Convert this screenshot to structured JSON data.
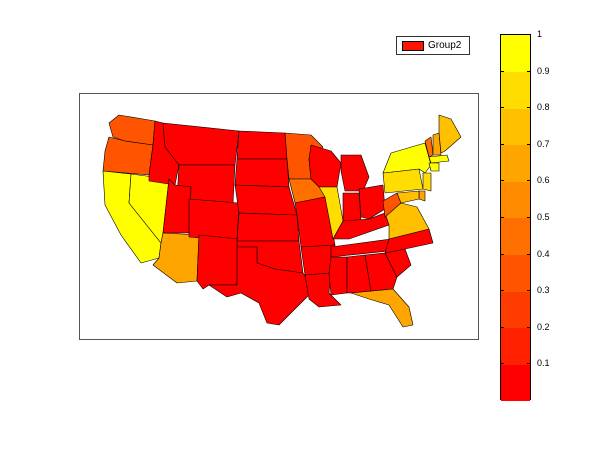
{
  "legend": {
    "label": "Group2",
    "swatch_color": "#ff1400"
  },
  "colorbar": {
    "min": 0,
    "max": 1,
    "tick_labels": [
      "0.1",
      "0.2",
      "0.3",
      "0.4",
      "0.5",
      "0.6",
      "0.7",
      "0.8",
      "0.9",
      "1"
    ],
    "tick_values": [
      0.1,
      0.2,
      0.3,
      0.4,
      0.5,
      0.6,
      0.7,
      0.8,
      0.9,
      1.0
    ],
    "colors": [
      "#ff0000",
      "#ff2000",
      "#ff3c00",
      "#ff5500",
      "#ff7000",
      "#ff8c00",
      "#ffa500",
      "#ffc000",
      "#ffdd00",
      "#ffff00"
    ]
  },
  "map": {
    "states": [
      {
        "name": "WA",
        "value": 0.3
      },
      {
        "name": "OR",
        "value": 0.35
      },
      {
        "name": "CA",
        "value": 1.0
      },
      {
        "name": "NV",
        "value": 0.9
      },
      {
        "name": "ID",
        "value": 0.05
      },
      {
        "name": "MT",
        "value": 0.05
      },
      {
        "name": "WY",
        "value": 0.05
      },
      {
        "name": "UT",
        "value": 0.05
      },
      {
        "name": "AZ",
        "value": 0.65
      },
      {
        "name": "CO",
        "value": 0.05
      },
      {
        "name": "NM",
        "value": 0.05
      },
      {
        "name": "ND",
        "value": 0.05
      },
      {
        "name": "SD",
        "value": 0.05
      },
      {
        "name": "NE",
        "value": 0.05
      },
      {
        "name": "KS",
        "value": 0.05
      },
      {
        "name": "OK",
        "value": 0.05
      },
      {
        "name": "TX",
        "value": 0.05
      },
      {
        "name": "MN",
        "value": 0.35
      },
      {
        "name": "IA",
        "value": 0.4
      },
      {
        "name": "MO",
        "value": 0.05
      },
      {
        "name": "AR",
        "value": 0.05
      },
      {
        "name": "LA",
        "value": 0.05
      },
      {
        "name": "WI",
        "value": 0.05
      },
      {
        "name": "IL",
        "value": 0.8
      },
      {
        "name": "MI",
        "value": 0.05
      },
      {
        "name": "IN",
        "value": 0.05
      },
      {
        "name": "OH",
        "value": 0.05
      },
      {
        "name": "KY",
        "value": 0.05
      },
      {
        "name": "TN",
        "value": 0.05
      },
      {
        "name": "MS",
        "value": 0.05
      },
      {
        "name": "AL",
        "value": 0.05
      },
      {
        "name": "GA",
        "value": 0.05
      },
      {
        "name": "FL",
        "value": 0.6
      },
      {
        "name": "SC",
        "value": 0.05
      },
      {
        "name": "NC",
        "value": 0.05
      },
      {
        "name": "VA",
        "value": 0.75
      },
      {
        "name": "WV",
        "value": 0.3
      },
      {
        "name": "PA",
        "value": 0.85
      },
      {
        "name": "NY",
        "value": 0.95
      },
      {
        "name": "VT",
        "value": 0.4
      },
      {
        "name": "NH",
        "value": 0.6
      },
      {
        "name": "ME",
        "value": 0.7
      },
      {
        "name": "MA",
        "value": 0.9
      },
      {
        "name": "CT",
        "value": 0.9
      },
      {
        "name": "NJ",
        "value": 0.8
      },
      {
        "name": "DE",
        "value": 0.6
      },
      {
        "name": "MD",
        "value": 0.7
      }
    ]
  }
}
